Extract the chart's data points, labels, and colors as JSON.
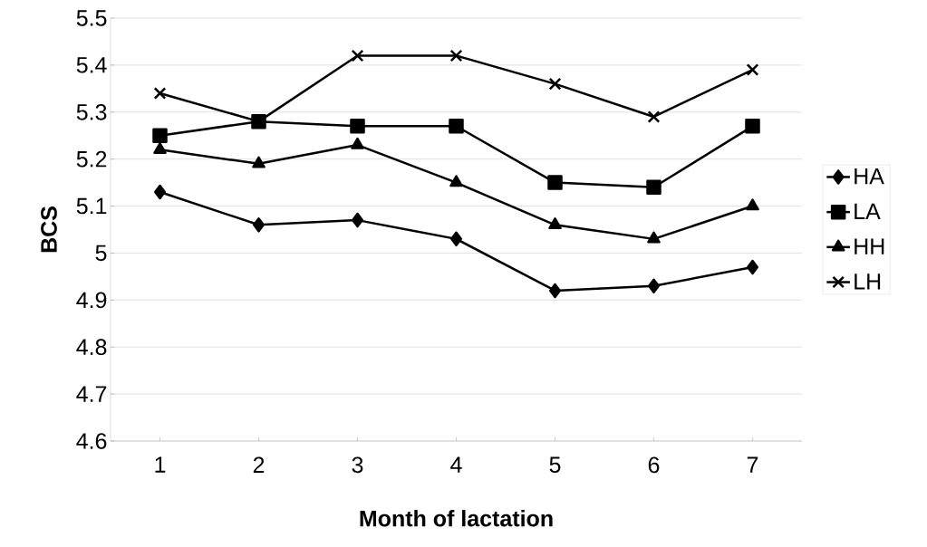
{
  "chart_data": {
    "type": "line",
    "xlabel": "Month of lactation",
    "ylabel": "BCS",
    "categories": [
      "1",
      "2",
      "3",
      "4",
      "5",
      "6",
      "7"
    ],
    "series": [
      {
        "name": "HA",
        "color": "#000000",
        "marker": "diamond",
        "values": [
          5.13,
          5.06,
          5.07,
          5.03,
          4.92,
          4.93,
          4.97
        ]
      },
      {
        "name": "LA",
        "color": "#000000",
        "marker": "square",
        "values": [
          5.25,
          5.28,
          5.27,
          5.27,
          5.15,
          5.14,
          5.27
        ]
      },
      {
        "name": "HH",
        "color": "#000000",
        "marker": "triangle",
        "values": [
          5.22,
          5.19,
          5.23,
          5.15,
          5.06,
          5.03,
          5.1
        ]
      },
      {
        "name": "LH",
        "color": "#000000",
        "marker": "cross",
        "values": [
          5.34,
          5.28,
          5.42,
          5.42,
          5.36,
          5.29,
          5.39
        ]
      }
    ],
    "ylim": [
      4.6,
      5.5
    ],
    "yticks": [
      4.6,
      4.7,
      4.8,
      4.9,
      5,
      5.1,
      5.2,
      5.3,
      5.4,
      5.5
    ],
    "grid": "y",
    "legend": "right",
    "line_style": "solid"
  }
}
